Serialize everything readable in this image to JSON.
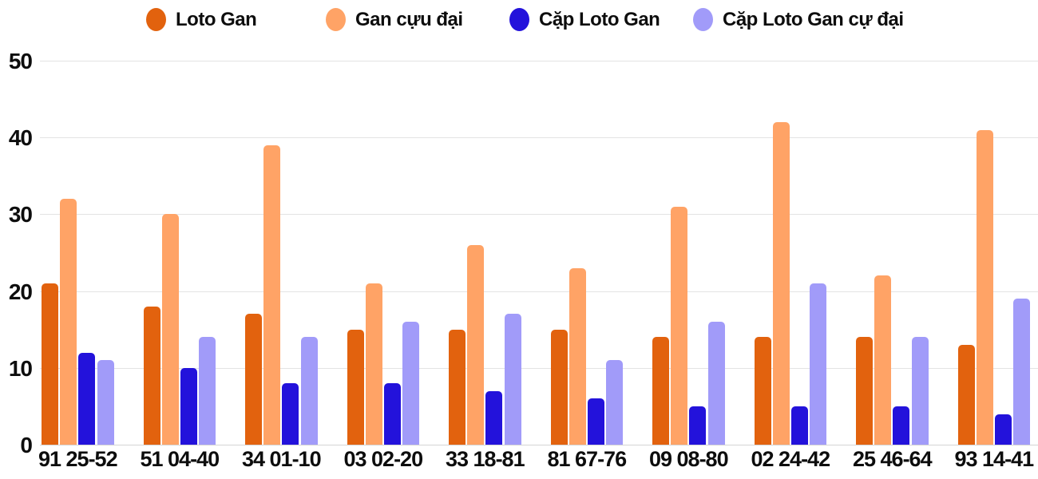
{
  "chart_data": {
    "type": "bar",
    "title": "",
    "xlabel": "",
    "ylabel": "",
    "categories": [
      "91 25-52",
      "51 04-40",
      "34 01-10",
      "03 02-20",
      "33 18-81",
      "81 67-76",
      "09 08-80",
      "02 24-42",
      "25 46-64",
      "93 14-41"
    ],
    "series": [
      {
        "name": "Loto Gan",
        "color": "#e2620e",
        "values": [
          21,
          18,
          17,
          15,
          15,
          15,
          14,
          14,
          14,
          13
        ]
      },
      {
        "name": "Gan cựu đại",
        "color": "#ffa366",
        "values": [
          32,
          30,
          39,
          21,
          26,
          23,
          31,
          42,
          22,
          41
        ]
      },
      {
        "name": "Cặp Loto Gan",
        "color": "#2312db",
        "values": [
          12,
          10,
          8,
          8,
          7,
          6,
          5,
          5,
          5,
          4
        ]
      },
      {
        "name": "Cặp Loto Gan cự đại",
        "color": "#a19bf9",
        "values": [
          11,
          14,
          14,
          16,
          17,
          11,
          16,
          21,
          14,
          19
        ]
      }
    ],
    "ylim": [
      0,
      50
    ],
    "yticks": [
      0,
      10,
      20,
      30,
      40,
      50
    ],
    "grid": true,
    "legend_position": "top"
  },
  "colors": {
    "text": "#0d0d0d",
    "gridline": "#e3e3e3",
    "background": "#ffffff"
  },
  "layout_hints": {
    "legend_marker_shape": "circle"
  }
}
